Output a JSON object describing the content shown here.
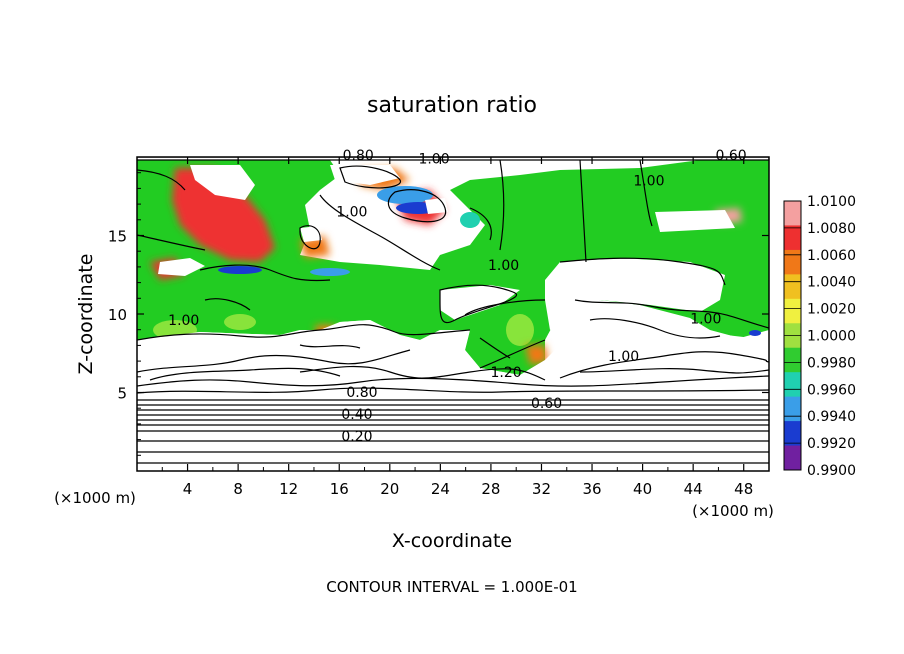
{
  "chart_data": {
    "type": "heatmap",
    "title": "saturation ratio",
    "xlabel": "X-coordinate",
    "ylabel": "Z-coordinate",
    "x_unit": "(×1000 m)",
    "x_unit_right": "(×1000 m)",
    "xlim": [
      0,
      50
    ],
    "ylim": [
      0,
      20
    ],
    "x_ticks": [
      "4",
      "8",
      "12",
      "16",
      "20",
      "24",
      "28",
      "32",
      "36",
      "40",
      "44",
      "48"
    ],
    "x_tick_values": [
      4,
      8,
      12,
      16,
      20,
      24,
      28,
      32,
      36,
      40,
      44,
      48
    ],
    "y_ticks": [
      "5",
      "10",
      "15"
    ],
    "y_tick_values": [
      5,
      10,
      15
    ],
    "colorbar": {
      "labels": [
        "1.0100",
        "1.0080",
        "1.0060",
        "1.0040",
        "1.0020",
        "1.0000",
        "0.9980",
        "0.9960",
        "0.9940",
        "0.9920",
        "0.9900"
      ],
      "colors": [
        "#f4a0a0",
        "#ee3030",
        "#f07818",
        "#f0c020",
        "#f0f040",
        "#a0e040",
        "#30cc30",
        "#20d0b0",
        "#3a9ee8",
        "#1a3cd0",
        "#7020a0"
      ]
    },
    "contour_labels": [
      {
        "text": "0.80",
        "x": 17.5,
        "y": 19.8
      },
      {
        "text": "1.00",
        "x": 23.5,
        "y": 19.6
      },
      {
        "text": "0.60",
        "x": 47.0,
        "y": 19.8
      },
      {
        "text": "1.00",
        "x": 40.5,
        "y": 18.2
      },
      {
        "text": "1.00",
        "x": 17.0,
        "y": 16.2
      },
      {
        "text": "1.00",
        "x": 29.0,
        "y": 12.8
      },
      {
        "text": "1.00",
        "x": 3.7,
        "y": 9.3
      },
      {
        "text": "1.00",
        "x": 45.0,
        "y": 9.4
      },
      {
        "text": "1.00",
        "x": 38.5,
        "y": 7.0
      },
      {
        "text": "1.20",
        "x": 29.2,
        "y": 6.0
      },
      {
        "text": "0.80",
        "x": 17.8,
        "y": 4.7
      },
      {
        "text": "0.60",
        "x": 32.4,
        "y": 4.0
      },
      {
        "text": "0.40",
        "x": 17.4,
        "y": 3.3
      },
      {
        "text": "0.20",
        "x": 17.4,
        "y": 1.9
      }
    ],
    "footer": "CONTOUR INTERVAL = 1.000E-01"
  }
}
